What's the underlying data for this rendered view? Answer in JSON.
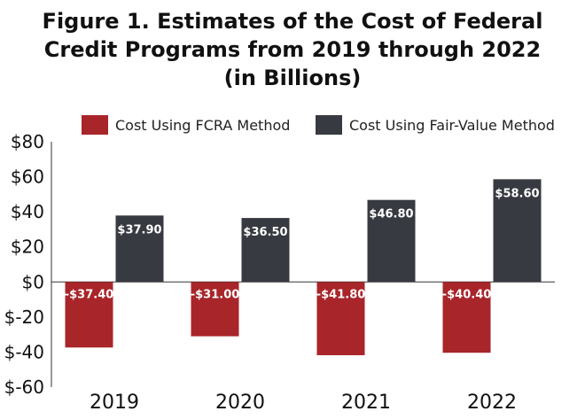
{
  "title_lines": [
    "Figure 1. Estimates of the Cost of Federal",
    "Credit Programs from 2019 through 2022",
    "(in Billions)"
  ],
  "colors": {
    "fcra": "#a8252a",
    "fair_value": "#373a40"
  },
  "chart_data": {
    "type": "bar",
    "title": "Figure 1. Estimates of the Cost of Federal Credit Programs from 2019 through 2022 (in Billions)",
    "categories": [
      "2019",
      "2020",
      "2021",
      "2022"
    ],
    "series": [
      {
        "name": "Cost Using FCRA Method",
        "values": [
          -37.4,
          -31.0,
          -41.8,
          -40.4
        ],
        "labels": [
          "-$37.40",
          "-$31.00",
          "-$41.80",
          "-$40.40"
        ]
      },
      {
        "name": "Cost Using Fair-Value Method",
        "values": [
          37.9,
          36.5,
          46.8,
          58.6
        ],
        "labels": [
          "$37.90",
          "$36.50",
          "$46.80",
          "$58.60"
        ]
      }
    ],
    "ylim": [
      -60,
      80
    ],
    "yticks": [
      80,
      60,
      40,
      20,
      0,
      -20,
      -40,
      -60
    ],
    "ytick_labels": [
      "$80",
      "$60",
      "$40",
      "$20",
      "$0",
      "$-20",
      "$-40",
      "$-60"
    ],
    "xlabel": "",
    "ylabel": "",
    "legend": "top",
    "grid": false
  }
}
